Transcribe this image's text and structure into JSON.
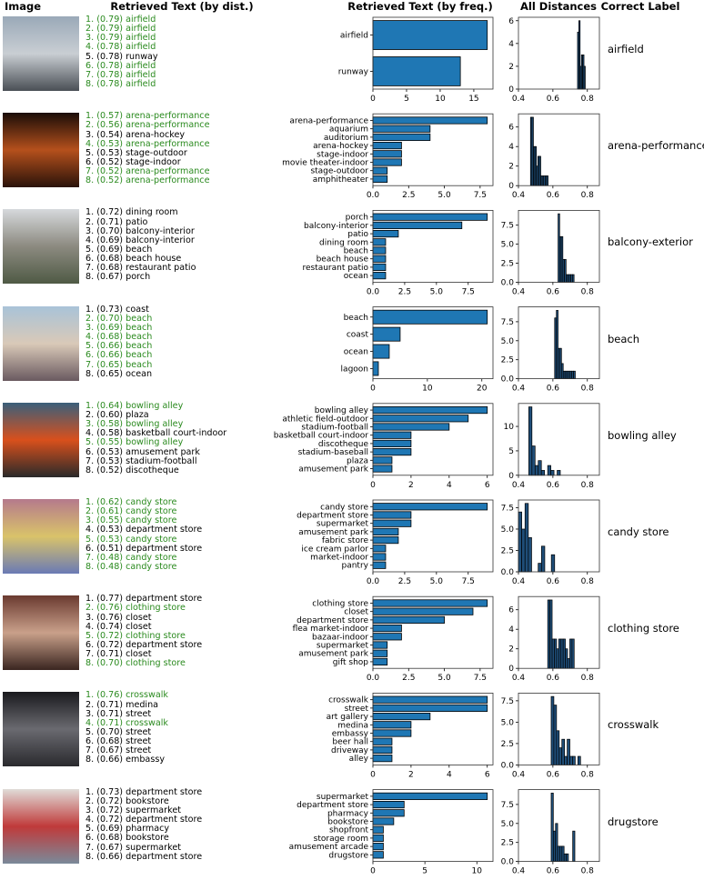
{
  "headers": {
    "image": "Image",
    "by_dist": "Retrieved Text (by dist.)",
    "by_freq": "Retrieved Text (by freq.)",
    "all_distances": "All Distances",
    "correct_label": "Correct Label"
  },
  "colors": {
    "bar": "#1f77b4",
    "hist": "#1f4e79",
    "correct_text": "#2a8a1e",
    "edge": "#000000"
  },
  "rows": [
    {
      "correct_label": "airfield",
      "thumb_colors": [
        "#9aa9b8",
        "#c9ced3",
        "#4a4f55"
      ],
      "retrieved": [
        {
          "text": "1. (0.79) airfield",
          "correct": true
        },
        {
          "text": "2. (0.79) airfield",
          "correct": true
        },
        {
          "text": "3. (0.79) airfield",
          "correct": true
        },
        {
          "text": "4. (0.78) airfield",
          "correct": true
        },
        {
          "text": "5. (0.78) runway",
          "correct": false
        },
        {
          "text": "6. (0.78) airfield",
          "correct": true
        },
        {
          "text": "7. (0.78) airfield",
          "correct": true
        },
        {
          "text": "8. (0.78) airfield",
          "correct": true
        }
      ]
    },
    {
      "correct_label": "arena-performance",
      "thumb_colors": [
        "#1a0d08",
        "#b5501c",
        "#2a130a"
      ],
      "retrieved": [
        {
          "text": "1. (0.57) arena-performance",
          "correct": true
        },
        {
          "text": "2. (0.56) arena-performance",
          "correct": true
        },
        {
          "text": "3. (0.54) arena-hockey",
          "correct": false
        },
        {
          "text": "4. (0.53) arena-performance",
          "correct": true
        },
        {
          "text": "5. (0.53) stage-outdoor",
          "correct": false
        },
        {
          "text": "6. (0.52) stage-indoor",
          "correct": false
        },
        {
          "text": "7. (0.52) arena-performance",
          "correct": true
        },
        {
          "text": "8. (0.52) arena-performance",
          "correct": true
        }
      ]
    },
    {
      "correct_label": "balcony-exterior",
      "thumb_colors": [
        "#d6d9dc",
        "#8c8a80",
        "#4f5a45"
      ],
      "retrieved": [
        {
          "text": "1. (0.72) dining room",
          "correct": false
        },
        {
          "text": "2. (0.71) patio",
          "correct": false
        },
        {
          "text": "3. (0.70) balcony-interior",
          "correct": false
        },
        {
          "text": "4. (0.69) balcony-interior",
          "correct": false
        },
        {
          "text": "5. (0.69) beach",
          "correct": false
        },
        {
          "text": "6. (0.68) beach house",
          "correct": false
        },
        {
          "text": "7. (0.68) restaurant patio",
          "correct": false
        },
        {
          "text": "8. (0.67) porch",
          "correct": false
        }
      ]
    },
    {
      "correct_label": "beach",
      "thumb_colors": [
        "#a9c3d8",
        "#d9c9b8",
        "#6a5a60"
      ],
      "retrieved": [
        {
          "text": "1. (0.73) coast",
          "correct": false
        },
        {
          "text": "2. (0.70) beach",
          "correct": true
        },
        {
          "text": "3. (0.69) beach",
          "correct": true
        },
        {
          "text": "4. (0.68) beach",
          "correct": true
        },
        {
          "text": "5. (0.66) beach",
          "correct": true
        },
        {
          "text": "6. (0.66) beach",
          "correct": true
        },
        {
          "text": "7. (0.65) beach",
          "correct": true
        },
        {
          "text": "8. (0.65) ocean",
          "correct": false
        }
      ]
    },
    {
      "correct_label": "bowling alley",
      "thumb_colors": [
        "#3a5f7a",
        "#d9501c",
        "#2a2a2a"
      ],
      "retrieved": [
        {
          "text": "1. (0.64) bowling alley",
          "correct": true
        },
        {
          "text": "2. (0.60) plaza",
          "correct": false
        },
        {
          "text": "3. (0.58) bowling alley",
          "correct": true
        },
        {
          "text": "4. (0.58) basketball court-indoor",
          "correct": false
        },
        {
          "text": "5. (0.55) bowling alley",
          "correct": true
        },
        {
          "text": "6. (0.53) amusement park",
          "correct": false
        },
        {
          "text": "7. (0.53) stadium-football",
          "correct": false
        },
        {
          "text": "8. (0.52) discotheque",
          "correct": false
        }
      ]
    },
    {
      "correct_label": "candy store",
      "thumb_colors": [
        "#b57a8c",
        "#d9c36a",
        "#6a7ab5"
      ],
      "retrieved": [
        {
          "text": "1. (0.62) candy store",
          "correct": true
        },
        {
          "text": "2. (0.61) candy store",
          "correct": true
        },
        {
          "text": "3. (0.55) candy store",
          "correct": true
        },
        {
          "text": "4. (0.53) department store",
          "correct": false
        },
        {
          "text": "5. (0.53) candy store",
          "correct": true
        },
        {
          "text": "6. (0.51) department store",
          "correct": false
        },
        {
          "text": "7. (0.48) candy store",
          "correct": true
        },
        {
          "text": "8. (0.48) candy store",
          "correct": true
        }
      ]
    },
    {
      "correct_label": "clothing store",
      "thumb_colors": [
        "#6a3a30",
        "#c9a08a",
        "#3a2520"
      ],
      "retrieved": [
        {
          "text": "1. (0.77) department store",
          "correct": false
        },
        {
          "text": "2. (0.76) clothing store",
          "correct": true
        },
        {
          "text": "3. (0.76) closet",
          "correct": false
        },
        {
          "text": "4. (0.74) closet",
          "correct": false
        },
        {
          "text": "5. (0.72) clothing store",
          "correct": true
        },
        {
          "text": "6. (0.72) department store",
          "correct": false
        },
        {
          "text": "7. (0.71) closet",
          "correct": false
        },
        {
          "text": "8. (0.70) clothing store",
          "correct": true
        }
      ]
    },
    {
      "correct_label": "crosswalk",
      "thumb_colors": [
        "#1a1a1e",
        "#6a6a70",
        "#2a2a2e"
      ],
      "retrieved": [
        {
          "text": "1. (0.76) crosswalk",
          "correct": true
        },
        {
          "text": "2. (0.71) medina",
          "correct": false
        },
        {
          "text": "3. (0.71) street",
          "correct": false
        },
        {
          "text": "4. (0.71) crosswalk",
          "correct": true
        },
        {
          "text": "5. (0.70) street",
          "correct": false
        },
        {
          "text": "6. (0.68) street",
          "correct": false
        },
        {
          "text": "7. (0.67) street",
          "correct": false
        },
        {
          "text": "8. (0.66) embassy",
          "correct": false
        }
      ]
    },
    {
      "correct_label": "drugstore",
      "thumb_colors": [
        "#e0dcd8",
        "#c03a3a",
        "#7a8a9a"
      ],
      "retrieved": [
        {
          "text": "1. (0.73) department store",
          "correct": false
        },
        {
          "text": "2. (0.72) bookstore",
          "correct": false
        },
        {
          "text": "3. (0.72) supermarket",
          "correct": false
        },
        {
          "text": "4. (0.72) department store",
          "correct": false
        },
        {
          "text": "5. (0.69) pharmacy",
          "correct": false
        },
        {
          "text": "6. (0.68) bookstore",
          "correct": false
        },
        {
          "text": "7. (0.67) supermarket",
          "correct": false
        },
        {
          "text": "8. (0.66) department store",
          "correct": false
        }
      ]
    }
  ],
  "chart_data": [
    {
      "type": "bar",
      "orientation": "horizontal",
      "categories": [
        "airfield",
        "runway"
      ],
      "values": [
        17,
        13
      ],
      "xticks": [
        "0",
        "5",
        "10",
        "15"
      ],
      "xtick_values": [
        0,
        5,
        10,
        15
      ]
    },
    {
      "type": "bar",
      "orientation": "horizontal",
      "categories": [
        "arena-performance",
        "aquarium",
        "auditorium",
        "arena-hockey",
        "stage-indoor",
        "movie theater-indoor",
        "stage-outdoor",
        "amphitheater"
      ],
      "values": [
        8,
        4,
        4,
        2,
        2,
        2,
        1,
        1
      ],
      "xticks": [
        "0.0",
        "2.5",
        "5.0",
        "7.5"
      ],
      "xtick_values": [
        0,
        2.5,
        5,
        7.5
      ]
    },
    {
      "type": "bar",
      "orientation": "horizontal",
      "categories": [
        "porch",
        "balcony-interior",
        "patio",
        "dining room",
        "beach",
        "beach house",
        "restaurant patio",
        "ocean"
      ],
      "values": [
        9,
        7,
        2,
        1,
        1,
        1,
        1,
        1
      ],
      "xticks": [
        "0.0",
        "2.5",
        "5.0",
        "7.5"
      ],
      "xtick_values": [
        0,
        2.5,
        5,
        7.5
      ]
    },
    {
      "type": "bar",
      "orientation": "horizontal",
      "categories": [
        "beach",
        "coast",
        "ocean",
        "lagoon"
      ],
      "values": [
        21,
        5,
        3,
        1
      ],
      "xticks": [
        "0",
        "10",
        "20"
      ],
      "xtick_values": [
        0,
        10,
        20
      ]
    },
    {
      "type": "bar",
      "orientation": "horizontal",
      "categories": [
        "bowling alley",
        "athletic field-outdoor",
        "stadium-football",
        "basketball court-indoor",
        "discotheque",
        "stadium-baseball",
        "plaza",
        "amusement park"
      ],
      "values": [
        6,
        5,
        4,
        2,
        2,
        2,
        1,
        1
      ],
      "xticks": [
        "0",
        "2",
        "4",
        "6"
      ],
      "xtick_values": [
        0,
        2,
        4,
        6
      ]
    },
    {
      "type": "bar",
      "orientation": "horizontal",
      "categories": [
        "candy store",
        "department store",
        "supermarket",
        "amusement park",
        "fabric store",
        "ice cream parlor",
        "market-indoor",
        "pantry"
      ],
      "values": [
        9,
        3,
        3,
        2,
        2,
        1,
        1,
        1
      ],
      "xticks": [
        "0.0",
        "2.5",
        "5.0",
        "7.5"
      ],
      "xtick_values": [
        0,
        2.5,
        5,
        7.5
      ]
    },
    {
      "type": "bar",
      "orientation": "horizontal",
      "categories": [
        "clothing store",
        "closet",
        "department store",
        "flea market-indoor",
        "bazaar-indoor",
        "supermarket",
        "amusement park",
        "gift shop"
      ],
      "values": [
        8,
        7,
        5,
        2,
        2,
        1,
        1,
        1
      ],
      "xticks": [
        "0.0",
        "2.5",
        "5.0",
        "7.5"
      ],
      "xtick_values": [
        0,
        2.5,
        5,
        7.5
      ]
    },
    {
      "type": "bar",
      "orientation": "horizontal",
      "categories": [
        "crosswalk",
        "street",
        "art gallery",
        "medina",
        "embassy",
        "beer hall",
        "driveway",
        "alley"
      ],
      "values": [
        6,
        6,
        3,
        2,
        2,
        1,
        1,
        1
      ],
      "xticks": [
        "0",
        "2",
        "4",
        "6"
      ],
      "xtick_values": [
        0,
        2,
        4,
        6
      ]
    },
    {
      "type": "bar",
      "orientation": "horizontal",
      "categories": [
        "supermarket",
        "department store",
        "pharmacy",
        "bookstore",
        "shopfront",
        "storage room",
        "amusement arcade",
        "drugstore"
      ],
      "values": [
        11,
        3,
        3,
        2,
        1,
        1,
        1,
        1
      ],
      "xticks": [
        "0",
        "5",
        "10"
      ],
      "xtick_values": [
        0,
        5,
        10
      ]
    },
    {
      "type": "histogram",
      "title": "All Distances",
      "xlim": [
        0.4,
        0.87
      ],
      "xticks": [
        "0.4",
        "0.6",
        "0.8"
      ],
      "xtick_values": [
        0.4,
        0.6,
        0.8
      ],
      "bin_start": 0.743,
      "bin_width": 0.0075,
      "counts": [
        5,
        6,
        2,
        3,
        3,
        2
      ],
      "yticks": [
        "0",
        "2",
        "4",
        "6"
      ],
      "ytick_values": [
        0,
        2,
        4,
        6
      ]
    },
    {
      "type": "histogram",
      "xlim": [
        0.4,
        0.87
      ],
      "xticks": [
        "0.4",
        "0.6",
        "0.8"
      ],
      "xtick_values": [
        0.4,
        0.6,
        0.8
      ],
      "bin_start": 0.47,
      "bin_width": 0.0085,
      "counts": [
        7,
        7,
        4,
        4,
        2,
        3,
        3,
        1,
        1,
        1,
        1,
        1
      ],
      "yticks": [
        "0",
        "2",
        "4",
        "6"
      ],
      "ytick_values": [
        0,
        2,
        4,
        6
      ]
    },
    {
      "type": "histogram",
      "xlim": [
        0.4,
        0.87
      ],
      "xticks": [
        "0.4",
        "0.6",
        "0.8"
      ],
      "xtick_values": [
        0.4,
        0.6,
        0.8
      ],
      "bin_start": 0.63,
      "bin_width": 0.0093,
      "counts": [
        9,
        6,
        6,
        3,
        3,
        1,
        1,
        1,
        1,
        1
      ],
      "yticks": [
        "0.0",
        "2.5",
        "5.0",
        "7.5"
      ],
      "ytick_values": [
        0,
        2.5,
        5,
        7.5
      ]
    },
    {
      "type": "histogram",
      "xlim": [
        0.4,
        0.87
      ],
      "xticks": [
        "0.4",
        "0.6",
        "0.8"
      ],
      "xtick_values": [
        0.4,
        0.6,
        0.8
      ],
      "bin_start": 0.61,
      "bin_width": 0.01,
      "counts": [
        8,
        9,
        4,
        4,
        2,
        1,
        1,
        1,
        1,
        1,
        1,
        1
      ],
      "yticks": [
        "0.0",
        "2.5",
        "5.0",
        "7.5"
      ],
      "ytick_values": [
        0,
        2.5,
        5,
        7.5
      ]
    },
    {
      "type": "histogram",
      "xlim": [
        0.4,
        0.87
      ],
      "xticks": [
        "0.4",
        "0.6",
        "0.8"
      ],
      "xtick_values": [
        0.4,
        0.6,
        0.8
      ],
      "bin_start": 0.46,
      "bin_width": 0.0183,
      "counts": [
        14,
        6,
        2,
        3,
        1,
        0,
        2,
        1,
        0,
        1
      ],
      "yticks": [
        "0",
        "5",
        "10"
      ],
      "ytick_values": [
        0,
        5,
        10
      ]
    },
    {
      "type": "histogram",
      "xlim": [
        0.4,
        0.87
      ],
      "xticks": [
        "0.4",
        "0.6",
        "0.8"
      ],
      "xtick_values": [
        0.4,
        0.6,
        0.8
      ],
      "bin_start": 0.4,
      "bin_width": 0.0191,
      "counts": [
        7,
        5,
        8,
        4,
        0,
        0,
        1,
        3,
        0,
        0,
        2
      ],
      "yticks": [
        "0.0",
        "2.5",
        "5.0",
        "7.5"
      ],
      "ytick_values": [
        0,
        2.5,
        5,
        7.5
      ]
    },
    {
      "type": "histogram",
      "xlim": [
        0.4,
        0.87
      ],
      "xticks": [
        "0.4",
        "0.6",
        "0.8"
      ],
      "xtick_values": [
        0.4,
        0.6,
        0.8
      ],
      "bin_start": 0.57,
      "bin_width": 0.0128,
      "counts": [
        7,
        7,
        3,
        3,
        2,
        3,
        3,
        3,
        2,
        1,
        3,
        3
      ],
      "yticks": [
        "0",
        "2",
        "4",
        "6"
      ],
      "ytick_values": [
        0,
        2,
        4,
        6
      ]
    },
    {
      "type": "histogram",
      "xlim": [
        0.4,
        0.87
      ],
      "xticks": [
        "0.4",
        "0.6",
        "0.8"
      ],
      "xtick_values": [
        0.4,
        0.6,
        0.8
      ],
      "bin_start": 0.59,
      "bin_width": 0.0155,
      "counts": [
        8,
        7,
        4,
        2,
        3,
        1,
        3,
        1,
        1,
        0,
        1
      ],
      "yticks": [
        "0.0",
        "2.5",
        "5.0",
        "7.5"
      ],
      "ytick_values": [
        0,
        2.5,
        5,
        7.5
      ]
    },
    {
      "type": "histogram",
      "xlim": [
        0.4,
        0.87
      ],
      "xticks": [
        "0.4",
        "0.6",
        "0.8"
      ],
      "xtick_values": [
        0.4,
        0.6,
        0.8
      ],
      "bin_start": 0.59,
      "bin_width": 0.0125,
      "counts": [
        9,
        4,
        5,
        2,
        2,
        2,
        1,
        1,
        0,
        0,
        4
      ],
      "yticks": [
        "0.0",
        "2.5",
        "5.0",
        "7.5"
      ],
      "ytick_values": [
        0,
        2.5,
        5,
        7.5
      ]
    }
  ]
}
